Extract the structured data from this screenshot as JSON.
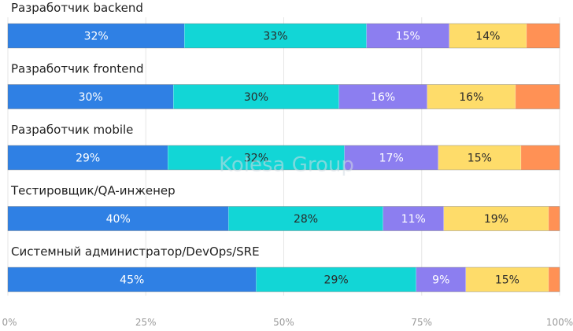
{
  "chart_data": {
    "type": "bar",
    "orientation": "horizontal",
    "stacked": true,
    "title": "",
    "xlabel": "",
    "ylabel": "",
    "xlim": [
      0,
      100
    ],
    "categories": [
      "Разработчик backend",
      "Разработчик frontend",
      "Разработчик mobile",
      "Тестировщик/QA-инженер",
      "Системный администратор/DevOps/SRE"
    ],
    "series": [
      {
        "name": "segment-1",
        "color": "#2f80e4",
        "label_color": "#ffffff",
        "values": [
          32,
          30,
          29,
          40,
          45
        ]
      },
      {
        "name": "segment-2",
        "color": "#12d6d6",
        "label_color": "#2a2a2a",
        "values": [
          33,
          30,
          32,
          28,
          29
        ]
      },
      {
        "name": "segment-3",
        "color": "#8c7ef0",
        "label_color": "#ffffff",
        "values": [
          15,
          16,
          17,
          11,
          9
        ]
      },
      {
        "name": "segment-4",
        "color": "#fedc6a",
        "label_color": "#2a2a2a",
        "values": [
          14,
          16,
          15,
          19,
          15
        ]
      },
      {
        "name": "segment-5",
        "color": "#ff9155",
        "label_color": "#ffffff",
        "values": [
          6,
          8,
          7,
          2,
          2
        ]
      }
    ],
    "value_labels": [
      [
        "32%",
        "33%",
        "15%",
        "14%",
        ""
      ],
      [
        "30%",
        "30%",
        "16%",
        "16%",
        ""
      ],
      [
        "29%",
        "32%",
        "17%",
        "15%",
        ""
      ],
      [
        "40%",
        "28%",
        "11%",
        "19%",
        ""
      ],
      [
        "45%",
        "29%",
        "9%",
        "15%",
        ""
      ]
    ],
    "x_ticks": [
      0,
      25,
      50,
      75,
      100
    ],
    "x_tick_labels": [
      "0%",
      "25%",
      "50%",
      "75%",
      "100%"
    ],
    "grid": true,
    "watermark": "Kolesa Group"
  }
}
